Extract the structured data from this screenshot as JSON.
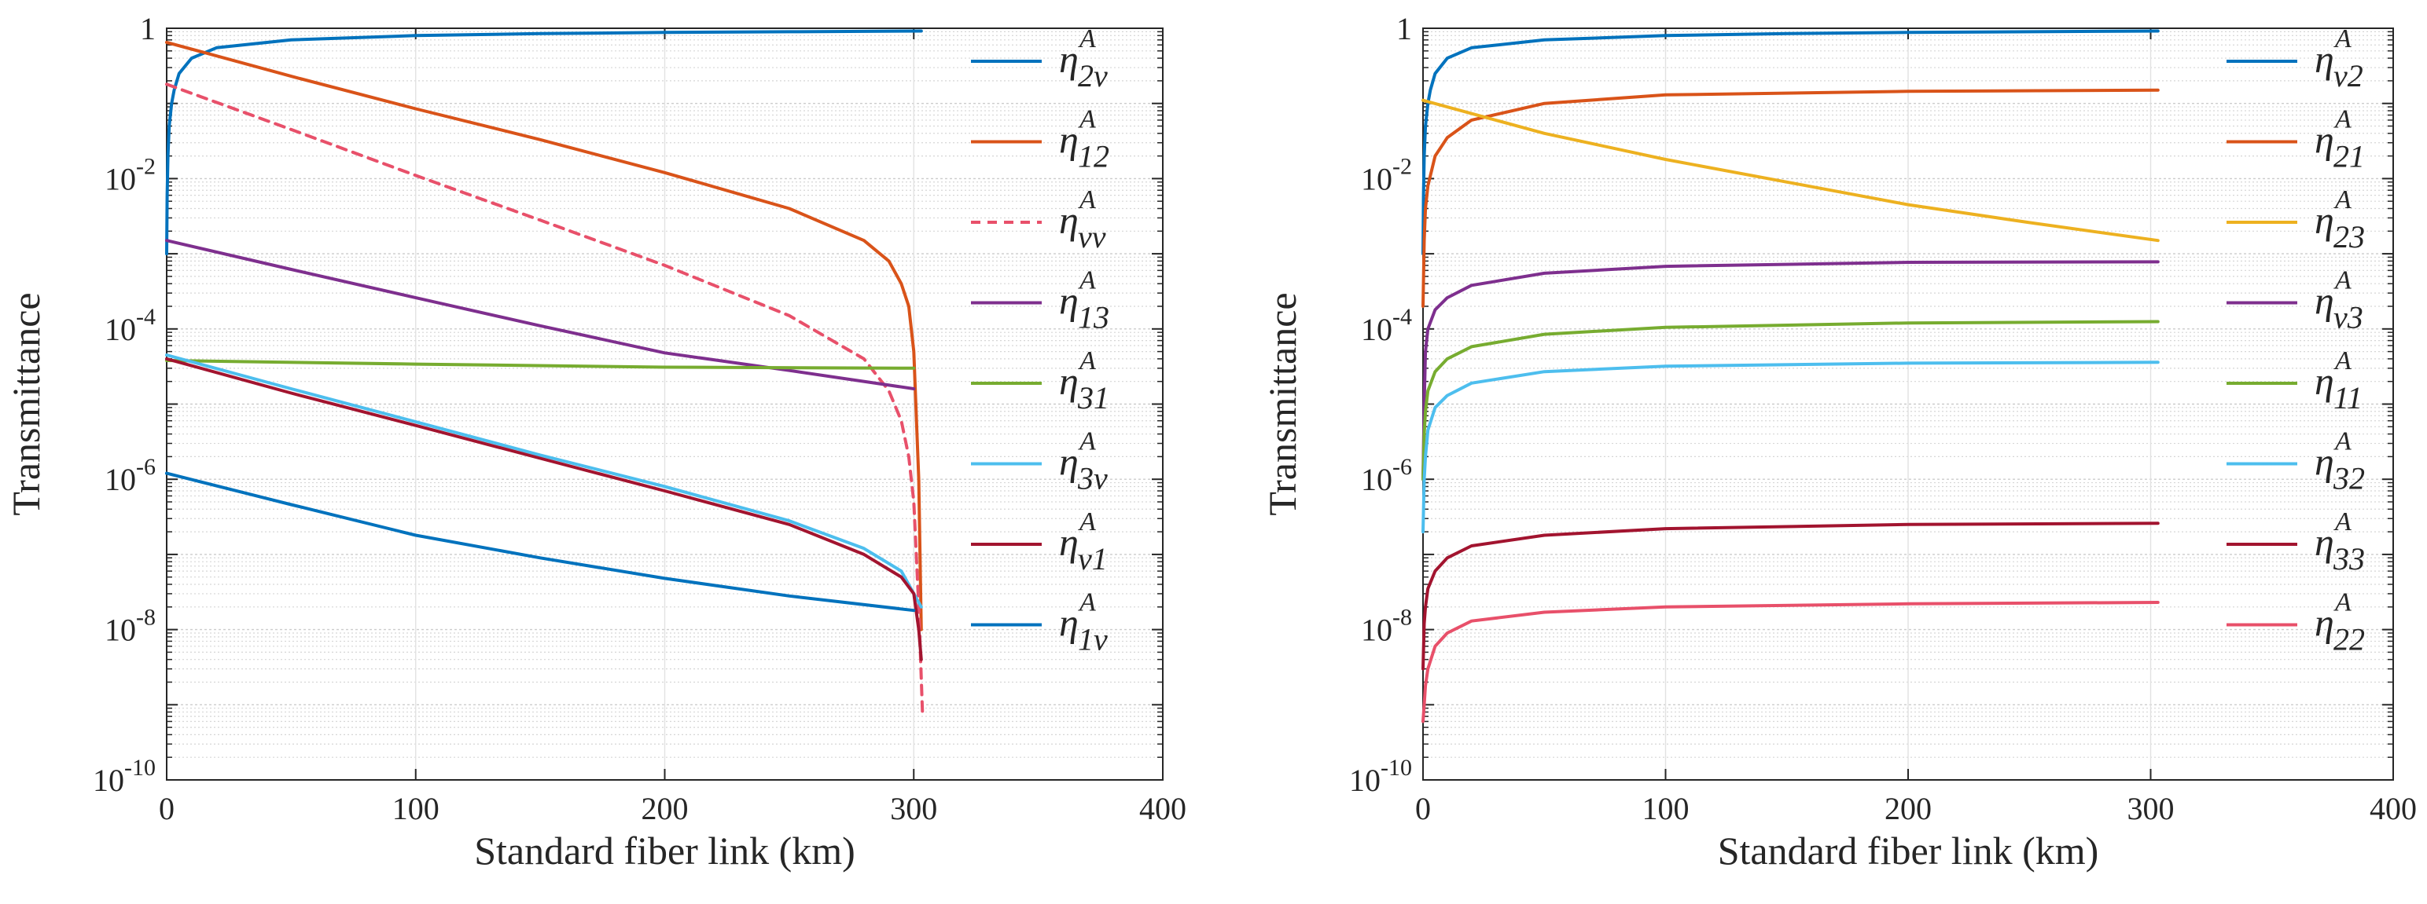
{
  "chart_data": [
    {
      "type": "line",
      "yscale": "log",
      "xlabel": "Standard fiber link (km)",
      "ylabel": "Transmittance",
      "xlim": [
        0,
        400
      ],
      "ylim": [
        1e-10,
        1
      ],
      "xticks": [
        0,
        100,
        200,
        300,
        400
      ],
      "xtick_labels": [
        "0",
        "100",
        "200",
        "300",
        "400"
      ],
      "ytick_labels": [
        {
          "base": "1",
          "exp": ""
        },
        {
          "base": "10",
          "exp": "-2"
        },
        {
          "base": "10",
          "exp": "-4"
        },
        {
          "base": "10",
          "exp": "-6"
        },
        {
          "base": "10",
          "exp": "-8"
        },
        {
          "base": "10",
          "exp": "-10"
        }
      ],
      "grid": true,
      "legend_position": "right",
      "series": [
        {
          "name": "η_2v^A",
          "sup": "A",
          "sub": "2v",
          "color": "#0072BD",
          "dash": false,
          "x": [
            0,
            0.2,
            0.5,
            1,
            2,
            3,
            5,
            10,
            20,
            50,
            100,
            150,
            200,
            250,
            303
          ],
          "y": [
            0.001,
            0.006,
            0.02,
            0.05,
            0.1,
            0.15,
            0.25,
            0.4,
            0.55,
            0.7,
            0.8,
            0.85,
            0.88,
            0.9,
            0.92
          ]
        },
        {
          "name": "η_12^A",
          "sup": "A",
          "sub": "12",
          "color": "#D95319",
          "dash": false,
          "x": [
            0,
            50,
            100,
            150,
            200,
            250,
            280,
            290,
            295,
            298,
            300,
            302,
            303
          ],
          "y": [
            0.65,
            0.23,
            0.085,
            0.033,
            0.012,
            0.004,
            0.0015,
            0.0008,
            0.0004,
            0.0002,
            5e-05,
            1e-06,
            1e-08
          ]
        },
        {
          "name": "η_vv^A",
          "sup": "A",
          "sub": "vv",
          "color": "#E8506A",
          "dash": true,
          "x": [
            0,
            50,
            100,
            150,
            200,
            250,
            280,
            290,
            295,
            298,
            300,
            302,
            303.5
          ],
          "y": [
            0.18,
            0.045,
            0.011,
            0.0028,
            0.0007,
            0.00015,
            4e-05,
            1.5e-05,
            6e-06,
            2e-06,
            5e-07,
            2e-08,
            8e-10
          ]
        },
        {
          "name": "η_13^A",
          "sup": "A",
          "sub": "13",
          "color": "#7E2F8E",
          "dash": false,
          "x": [
            0,
            50,
            100,
            150,
            200,
            250,
            300
          ],
          "y": [
            0.0015,
            0.00062,
            0.00026,
            0.00011,
            4.8e-05,
            2.8e-05,
            1.6e-05
          ]
        },
        {
          "name": "η_31^A",
          "sup": "A",
          "sub": "31",
          "color": "#77AC30",
          "dash": false,
          "x": [
            0,
            100,
            200,
            300
          ],
          "y": [
            3.8e-05,
            3.4e-05,
            3.1e-05,
            3e-05
          ]
        },
        {
          "name": "η_3v^A",
          "sup": "A",
          "sub": "3v",
          "color": "#4DBEEE",
          "dash": false,
          "x": [
            0,
            50,
            100,
            150,
            200,
            250,
            280,
            295,
            300,
            303
          ],
          "y": [
            4.5e-05,
            1.6e-05,
            5.8e-06,
            2.1e-06,
            8e-07,
            2.8e-07,
            1.2e-07,
            6e-08,
            3e-08,
            2e-08
          ]
        },
        {
          "name": "η_v1^A",
          "sup": "A",
          "sub": "v1",
          "color": "#A2142F",
          "dash": false,
          "x": [
            0,
            50,
            100,
            150,
            200,
            250,
            280,
            295,
            300,
            302,
            303
          ],
          "y": [
            4e-05,
            1.4e-05,
            5.2e-06,
            1.9e-06,
            7e-07,
            2.5e-07,
            1e-07,
            5e-08,
            3e-08,
            1e-08,
            4e-09
          ]
        },
        {
          "name": "η_1v^A",
          "sup": "A",
          "sub": "1v",
          "color": "#0072BD",
          "dash": false,
          "x": [
            0,
            50,
            100,
            150,
            200,
            250,
            300
          ],
          "y": [
            1.2e-06,
            4.6e-07,
            1.8e-07,
            9e-08,
            4.8e-08,
            2.8e-08,
            1.8e-08
          ]
        }
      ]
    },
    {
      "type": "line",
      "yscale": "log",
      "xlabel": "Standard fiber link (km)",
      "ylabel": "Transmittance",
      "xlim": [
        0,
        400
      ],
      "ylim": [
        1e-10,
        1
      ],
      "xticks": [
        0,
        100,
        200,
        300,
        400
      ],
      "xtick_labels": [
        "0",
        "100",
        "200",
        "300",
        "400"
      ],
      "ytick_labels": [
        {
          "base": "1",
          "exp": ""
        },
        {
          "base": "10",
          "exp": "-2"
        },
        {
          "base": "10",
          "exp": "-4"
        },
        {
          "base": "10",
          "exp": "-6"
        },
        {
          "base": "10",
          "exp": "-8"
        },
        {
          "base": "10",
          "exp": "-10"
        }
      ],
      "grid": true,
      "legend_position": "right",
      "series": [
        {
          "name": "η_v2^A",
          "sup": "A",
          "sub": "v2",
          "color": "#0072BD",
          "dash": false,
          "x": [
            0,
            0.2,
            0.5,
            1,
            2,
            3,
            5,
            10,
            20,
            50,
            100,
            150,
            200,
            250,
            303
          ],
          "y": [
            0.001,
            0.006,
            0.02,
            0.05,
            0.1,
            0.15,
            0.25,
            0.4,
            0.55,
            0.7,
            0.8,
            0.85,
            0.88,
            0.9,
            0.92
          ]
        },
        {
          "name": "η_21^A",
          "sup": "A",
          "sub": "21",
          "color": "#D95319",
          "dash": false,
          "x": [
            0,
            0.5,
            1,
            2,
            5,
            10,
            20,
            50,
            100,
            200,
            303
          ],
          "y": [
            0.0002,
            0.0015,
            0.004,
            0.008,
            0.02,
            0.035,
            0.06,
            0.1,
            0.13,
            0.145,
            0.15
          ]
        },
        {
          "name": "η_23^A",
          "sup": "A",
          "sub": "23",
          "color": "#EDB120",
          "dash": false,
          "x": [
            0,
            50,
            100,
            150,
            200,
            250,
            303
          ],
          "y": [
            0.11,
            0.04,
            0.018,
            0.009,
            0.0045,
            0.0026,
            0.0015
          ]
        },
        {
          "name": "η_v3^A",
          "sup": "A",
          "sub": "v3",
          "color": "#7E2F8E",
          "dash": false,
          "x": [
            0,
            0.5,
            1,
            2,
            5,
            10,
            20,
            50,
            100,
            200,
            303
          ],
          "y": [
            1e-06,
            1e-05,
            5e-05,
            0.0001,
            0.00018,
            0.00026,
            0.00038,
            0.00055,
            0.00068,
            0.00077,
            0.00078
          ]
        },
        {
          "name": "η_11^A",
          "sup": "A",
          "sub": "11",
          "color": "#77AC30",
          "dash": false,
          "x": [
            0,
            0.5,
            1,
            2,
            5,
            10,
            20,
            50,
            100,
            200,
            303
          ],
          "y": [
            1e-06,
            4e-06,
            8e-06,
            1.5e-05,
            2.7e-05,
            4e-05,
            5.8e-05,
            8.5e-05,
            0.000105,
            0.00012,
            0.000125
          ]
        },
        {
          "name": "η_32^A",
          "sup": "A",
          "sub": "32",
          "color": "#4DBEEE",
          "dash": false,
          "x": [
            0,
            0.5,
            1,
            2,
            5,
            10,
            20,
            50,
            100,
            200,
            303
          ],
          "y": [
            2e-07,
            1e-06,
            2e-06,
            4.5e-06,
            9e-06,
            1.3e-05,
            1.9e-05,
            2.7e-05,
            3.2e-05,
            3.5e-05,
            3.6e-05
          ]
        },
        {
          "name": "η_33^A",
          "sup": "A",
          "sub": "33",
          "color": "#A2142F",
          "dash": false,
          "x": [
            0,
            0.5,
            1,
            2,
            5,
            10,
            20,
            50,
            100,
            200,
            303
          ],
          "y": [
            3e-09,
            1.2e-08,
            2e-08,
            3.5e-08,
            6e-08,
            9e-08,
            1.3e-07,
            1.8e-07,
            2.2e-07,
            2.5e-07,
            2.6e-07
          ]
        },
        {
          "name": "η_22^A",
          "sup": "A",
          "sub": "22",
          "color": "#E8506A",
          "dash": false,
          "x": [
            0,
            0.5,
            1,
            2,
            5,
            10,
            20,
            50,
            100,
            200,
            303
          ],
          "y": [
            6e-10,
            1e-09,
            1.8e-09,
            3e-09,
            6e-09,
            9e-09,
            1.3e-08,
            1.7e-08,
            2e-08,
            2.2e-08,
            2.3e-08
          ]
        }
      ]
    }
  ]
}
